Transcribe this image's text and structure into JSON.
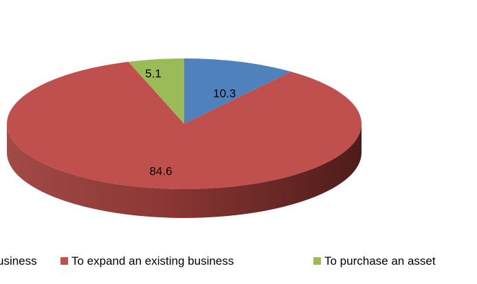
{
  "chart_data": {
    "type": "pie",
    "style": "3d",
    "title": "",
    "categories": [
      "To start a new business",
      "To expand an existing business",
      "To purchase an asset"
    ],
    "values": [
      10.3,
      84.6,
      5.1
    ],
    "data_labels": [
      "10.3",
      "84.6",
      "5.1"
    ],
    "colors": [
      "#4F81BD",
      "#C0504D",
      "#9BBB59"
    ],
    "legend": {
      "placement": "bottom",
      "visible_text": [
        "usiness",
        "To expand an existing business",
        "To purchase an asset"
      ]
    }
  }
}
